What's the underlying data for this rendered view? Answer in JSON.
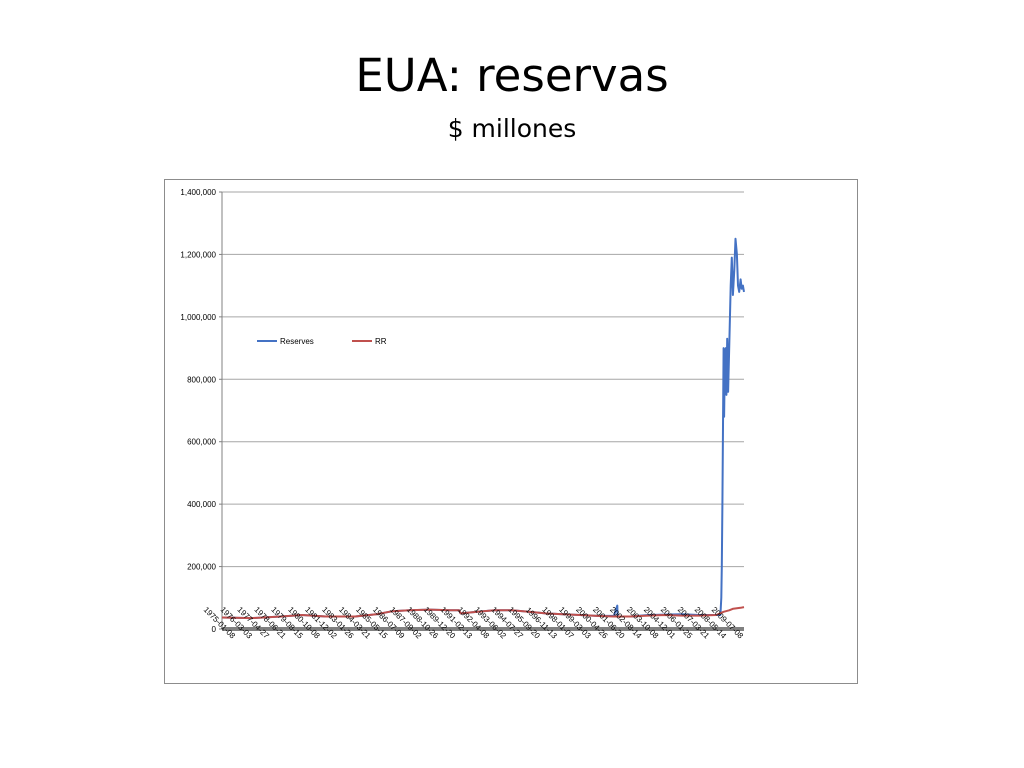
{
  "slide": {
    "title": "EUA: reservas",
    "subtitle": "$ millones"
  },
  "colors": {
    "reserves": "#4472c4",
    "rr": "#c0504d",
    "gridline": "#a6a6a6",
    "axis": "#808080"
  },
  "chart_data": {
    "type": "line",
    "title": "",
    "xlabel": "",
    "ylabel": "",
    "ylim": [
      0,
      1400000
    ],
    "yticks": [
      "0",
      "200,000",
      "400,000",
      "600,000",
      "800,000",
      "1,000,000",
      "1,200,000",
      "1,400,000"
    ],
    "ytick_values": [
      0,
      200000,
      400000,
      600000,
      800000,
      1000000,
      1200000,
      1400000
    ],
    "grid": true,
    "legend_position": "upper-left",
    "x_start": "1975-01-08",
    "x_end": "2010-03-31",
    "x_tick_labels": [
      "1975-01-08",
      "1976-03-03",
      "1977-04-27",
      "1978-06-21",
      "1979-08-15",
      "1980-10-08",
      "1981-12-02",
      "1983-01-26",
      "1984-03-21",
      "1985-05-15",
      "1986-07-09",
      "1987-09-02",
      "1988-10-26",
      "1989-12-20",
      "1991-02-13",
      "1992-04-08",
      "1993-06-02",
      "1994-07-27",
      "1995-09-20",
      "1996-11-13",
      "1998-01-07",
      "1999-03-03",
      "2000-04-26",
      "2001-06-20",
      "2002-08-14",
      "2003-10-08",
      "2004-12-01",
      "2006-01-25",
      "2007-03-21",
      "2008-05-14",
      "2009-07-08"
    ],
    "series": [
      {
        "name": "Reserves",
        "points": [
          [
            "1975-01-08",
            37000
          ],
          [
            "1977-01-05",
            35000
          ],
          [
            "1979-01-03",
            40000
          ],
          [
            "1980-06-04",
            45000
          ],
          [
            "1982-01-06",
            40000
          ],
          [
            "1984-01-04",
            40000
          ],
          [
            "1985-06-05",
            47000
          ],
          [
            "1986-07-09",
            57000
          ],
          [
            "1987-09-02",
            60000
          ],
          [
            "1989-01-04",
            62000
          ],
          [
            "1990-06-06",
            60000
          ],
          [
            "1991-01-09",
            60000
          ],
          [
            "1991-02-13",
            50000
          ],
          [
            "1992-04-08",
            55000
          ],
          [
            "1993-06-02",
            60000
          ],
          [
            "1994-07-27",
            60000
          ],
          [
            "1995-09-20",
            55000
          ],
          [
            "1996-11-13",
            50000
          ],
          [
            "1998-01-07",
            47000
          ],
          [
            "1999-03-03",
            45000
          ],
          [
            "2000-04-26",
            42000
          ],
          [
            "2001-06-20",
            42000
          ],
          [
            "2001-09-12",
            75000
          ],
          [
            "2001-09-19",
            40000
          ],
          [
            "2002-08-14",
            40000
          ],
          [
            "2003-10-08",
            45000
          ],
          [
            "2004-12-01",
            46000
          ],
          [
            "2006-01-25",
            47000
          ],
          [
            "2007-03-21",
            45000
          ],
          [
            "2008-08-27",
            45000
          ],
          [
            "2008-09-17",
            100000
          ],
          [
            "2008-10-01",
            200000
          ],
          [
            "2008-10-15",
            400000
          ],
          [
            "2008-10-29",
            650000
          ],
          [
            "2008-11-12",
            900000
          ],
          [
            "2008-11-26",
            680000
          ],
          [
            "2008-12-17",
            890000
          ],
          [
            "2009-01-07",
            900000
          ],
          [
            "2009-01-21",
            750000
          ],
          [
            "2009-02-11",
            930000
          ],
          [
            "2009-03-04",
            760000
          ],
          [
            "2009-04-01",
            900000
          ],
          [
            "2009-05-06",
            1100000
          ],
          [
            "2009-06-03",
            1190000
          ],
          [
            "2009-07-01",
            1070000
          ],
          [
            "2009-08-05",
            1150000
          ],
          [
            "2009-09-02",
            1250000
          ],
          [
            "2009-10-07",
            1200000
          ],
          [
            "2009-11-04",
            1100000
          ],
          [
            "2009-12-02",
            1080000
          ],
          [
            "2010-01-06",
            1120000
          ],
          [
            "2010-02-03",
            1090000
          ],
          [
            "2010-03-03",
            1100000
          ],
          [
            "2010-03-31",
            1080000
          ]
        ]
      },
      {
        "name": "RR",
        "points": [
          [
            "1975-01-08",
            37000
          ],
          [
            "1977-01-05",
            35000
          ],
          [
            "1979-01-03",
            40000
          ],
          [
            "1980-06-04",
            45000
          ],
          [
            "1982-01-06",
            40000
          ],
          [
            "1984-01-04",
            40000
          ],
          [
            "1985-06-05",
            47000
          ],
          [
            "1986-07-09",
            57000
          ],
          [
            "1987-09-02",
            60000
          ],
          [
            "1989-01-04",
            62000
          ],
          [
            "1990-06-06",
            60000
          ],
          [
            "1991-01-09",
            60000
          ],
          [
            "1991-02-13",
            50000
          ],
          [
            "1992-04-08",
            55000
          ],
          [
            "1993-06-02",
            60000
          ],
          [
            "1994-07-27",
            60000
          ],
          [
            "1995-09-20",
            55000
          ],
          [
            "1996-11-13",
            50000
          ],
          [
            "1998-01-07",
            47000
          ],
          [
            "1999-03-03",
            45000
          ],
          [
            "2000-04-26",
            42000
          ],
          [
            "2001-06-20",
            40000
          ],
          [
            "2002-08-14",
            40000
          ],
          [
            "2003-10-08",
            43000
          ],
          [
            "2004-12-01",
            45000
          ],
          [
            "2006-01-25",
            43000
          ],
          [
            "2007-03-21",
            43000
          ],
          [
            "2008-05-14",
            45000
          ],
          [
            "2008-11-12",
            55000
          ],
          [
            "2009-04-01",
            60000
          ],
          [
            "2009-07-08",
            65000
          ],
          [
            "2010-01-06",
            68000
          ],
          [
            "2010-03-31",
            70000
          ]
        ]
      }
    ]
  }
}
